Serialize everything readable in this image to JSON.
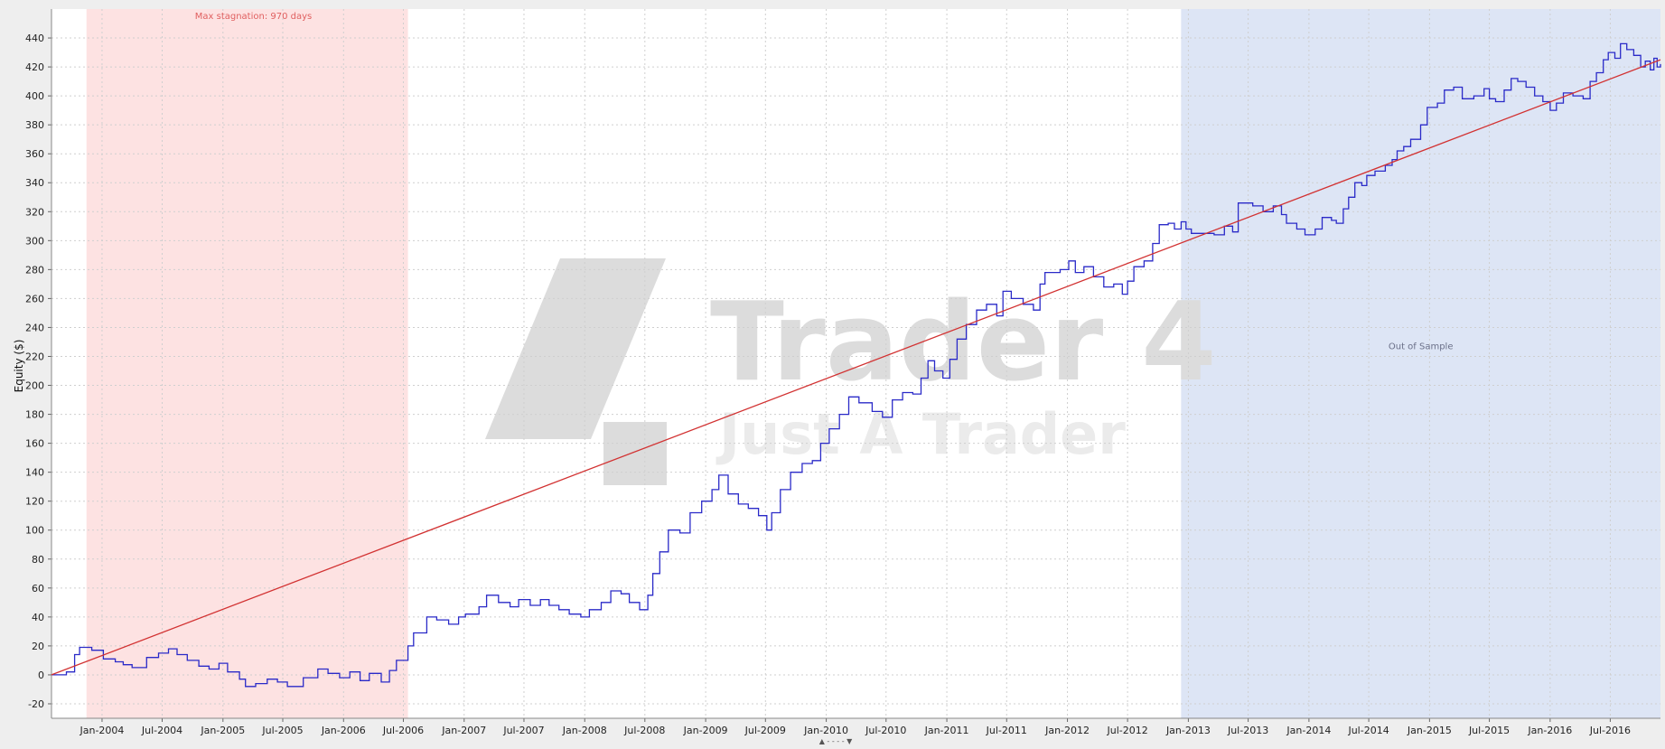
{
  "chart_data": {
    "type": "line",
    "title": "",
    "xlabel": "",
    "ylabel": "Equity ($)",
    "ylim": [
      -30,
      460
    ],
    "yticks": [
      -20,
      0,
      20,
      40,
      60,
      80,
      100,
      120,
      140,
      160,
      180,
      200,
      220,
      240,
      260,
      280,
      300,
      320,
      340,
      360,
      380,
      400,
      420,
      440
    ],
    "xlim": [
      "2003-08-01",
      "2016-11-30"
    ],
    "xticks": [
      "Jan-2004",
      "Jul-2004",
      "Jan-2005",
      "Jul-2005",
      "Jan-2006",
      "Jul-2006",
      "Jan-2007",
      "Jul-2007",
      "Jan-2008",
      "Jul-2008",
      "Jan-2009",
      "Jul-2009",
      "Jan-2010",
      "Jul-2010",
      "Jan-2011",
      "Jul-2011",
      "Jan-2012",
      "Jul-2012",
      "Jan-2013",
      "Jul-2013",
      "Jan-2014",
      "Jul-2014",
      "Jan-2015",
      "Jul-2015",
      "Jan-2016",
      "Jul-2016"
    ],
    "grid": true,
    "legend": "none",
    "regions": [
      {
        "label": "Max stagnation: 970 days",
        "start": "2003-11-15",
        "end": "2006-07-15",
        "color": "#fde2e2",
        "label_color": "#e06060"
      },
      {
        "label": "Out of Sample",
        "start": "2012-12-10",
        "end": "2016-11-30",
        "color": "#dde5f5",
        "label_color": "#6a6f88"
      }
    ],
    "series": [
      {
        "style": "step",
        "color": "#2a2ac8",
        "points": [
          [
            "2003-08-01",
            0
          ],
          [
            "2003-09-15",
            2
          ],
          [
            "2003-10-10",
            14
          ],
          [
            "2003-10-25",
            19
          ],
          [
            "2003-12-01",
            17
          ],
          [
            "2004-01-05",
            11
          ],
          [
            "2004-02-10",
            9
          ],
          [
            "2004-03-05",
            7
          ],
          [
            "2004-04-01",
            5
          ],
          [
            "2004-05-15",
            12
          ],
          [
            "2004-06-20",
            15
          ],
          [
            "2004-07-20",
            18
          ],
          [
            "2004-08-15",
            14
          ],
          [
            "2004-09-15",
            10
          ],
          [
            "2004-10-20",
            6
          ],
          [
            "2004-11-20",
            4
          ],
          [
            "2004-12-20",
            8
          ],
          [
            "2005-01-15",
            2
          ],
          [
            "2005-02-20",
            -3
          ],
          [
            "2005-03-10",
            -8
          ],
          [
            "2005-04-10",
            -6
          ],
          [
            "2005-05-15",
            -3
          ],
          [
            "2005-06-15",
            -5
          ],
          [
            "2005-07-15",
            -8
          ],
          [
            "2005-09-01",
            -2
          ],
          [
            "2005-10-15",
            4
          ],
          [
            "2005-11-15",
            1
          ],
          [
            "2005-12-20",
            -2
          ],
          [
            "2006-01-20",
            2
          ],
          [
            "2006-02-20",
            -4
          ],
          [
            "2006-03-20",
            1
          ],
          [
            "2006-04-25",
            -5
          ],
          [
            "2006-05-20",
            3
          ],
          [
            "2006-06-10",
            10
          ],
          [
            "2006-07-15",
            20
          ],
          [
            "2006-08-01",
            29
          ],
          [
            "2006-09-10",
            40
          ],
          [
            "2006-10-10",
            38
          ],
          [
            "2006-11-15",
            35
          ],
          [
            "2006-12-15",
            40
          ],
          [
            "2007-01-05",
            42
          ],
          [
            "2007-02-15",
            47
          ],
          [
            "2007-03-10",
            55
          ],
          [
            "2007-04-15",
            50
          ],
          [
            "2007-05-20",
            47
          ],
          [
            "2007-06-15",
            52
          ],
          [
            "2007-07-20",
            48
          ],
          [
            "2007-08-20",
            52
          ],
          [
            "2007-09-15",
            48
          ],
          [
            "2007-10-15",
            45
          ],
          [
            "2007-11-15",
            42
          ],
          [
            "2007-12-20",
            40
          ],
          [
            "2008-01-15",
            45
          ],
          [
            "2008-02-20",
            50
          ],
          [
            "2008-03-20",
            58
          ],
          [
            "2008-04-20",
            56
          ],
          [
            "2008-05-15",
            50
          ],
          [
            "2008-06-15",
            45
          ],
          [
            "2008-07-10",
            55
          ],
          [
            "2008-07-25",
            70
          ],
          [
            "2008-08-15",
            85
          ],
          [
            "2008-09-10",
            100
          ],
          [
            "2008-10-15",
            98
          ],
          [
            "2008-11-15",
            112
          ],
          [
            "2008-12-20",
            120
          ],
          [
            "2009-01-20",
            128
          ],
          [
            "2009-02-10",
            138
          ],
          [
            "2009-03-10",
            125
          ],
          [
            "2009-04-10",
            118
          ],
          [
            "2009-05-10",
            115
          ],
          [
            "2009-06-10",
            110
          ],
          [
            "2009-07-05",
            100
          ],
          [
            "2009-07-20",
            112
          ],
          [
            "2009-08-15",
            128
          ],
          [
            "2009-09-15",
            140
          ],
          [
            "2009-10-20",
            146
          ],
          [
            "2009-11-20",
            148
          ],
          [
            "2009-12-15",
            160
          ],
          [
            "2010-01-10",
            170
          ],
          [
            "2010-02-10",
            180
          ],
          [
            "2010-03-10",
            192
          ],
          [
            "2010-04-10",
            188
          ],
          [
            "2010-05-20",
            182
          ],
          [
            "2010-06-20",
            178
          ],
          [
            "2010-07-20",
            190
          ],
          [
            "2010-08-20",
            195
          ],
          [
            "2010-09-20",
            194
          ],
          [
            "2010-10-15",
            205
          ],
          [
            "2010-11-05",
            217
          ],
          [
            "2010-11-25",
            210
          ],
          [
            "2010-12-20",
            205
          ],
          [
            "2011-01-10",
            218
          ],
          [
            "2011-02-01",
            232
          ],
          [
            "2011-03-01",
            242
          ],
          [
            "2011-04-01",
            252
          ],
          [
            "2011-05-01",
            256
          ],
          [
            "2011-06-01",
            248
          ],
          [
            "2011-06-20",
            265
          ],
          [
            "2011-07-15",
            260
          ],
          [
            "2011-08-20",
            256
          ],
          [
            "2011-09-20",
            252
          ],
          [
            "2011-10-10",
            270
          ],
          [
            "2011-10-25",
            278
          ],
          [
            "2011-12-10",
            280
          ],
          [
            "2012-01-05",
            286
          ],
          [
            "2012-01-25",
            278
          ],
          [
            "2012-02-20",
            282
          ],
          [
            "2012-03-20",
            275
          ],
          [
            "2012-04-20",
            268
          ],
          [
            "2012-05-20",
            270
          ],
          [
            "2012-06-15",
            263
          ],
          [
            "2012-07-01",
            272
          ],
          [
            "2012-07-20",
            282
          ],
          [
            "2012-08-20",
            286
          ],
          [
            "2012-09-15",
            298
          ],
          [
            "2012-10-05",
            311
          ],
          [
            "2012-11-01",
            312
          ],
          [
            "2012-11-20",
            308
          ],
          [
            "2012-12-10",
            313
          ],
          [
            "2012-12-25",
            308
          ],
          [
            "2013-01-10",
            305
          ],
          [
            "2013-02-15",
            305
          ],
          [
            "2013-03-20",
            304
          ],
          [
            "2013-04-20",
            310
          ],
          [
            "2013-05-15",
            306
          ],
          [
            "2013-06-01",
            326
          ],
          [
            "2013-07-15",
            324
          ],
          [
            "2013-08-15",
            320
          ],
          [
            "2013-09-15",
            324
          ],
          [
            "2013-10-10",
            318
          ],
          [
            "2013-10-25",
            312
          ],
          [
            "2013-11-25",
            308
          ],
          [
            "2013-12-20",
            304
          ],
          [
            "2014-01-20",
            308
          ],
          [
            "2014-02-10",
            316
          ],
          [
            "2014-03-10",
            314
          ],
          [
            "2014-03-25",
            312
          ],
          [
            "2014-04-15",
            322
          ],
          [
            "2014-05-01",
            330
          ],
          [
            "2014-05-20",
            340
          ],
          [
            "2014-06-10",
            338
          ],
          [
            "2014-06-25",
            345
          ],
          [
            "2014-07-20",
            348
          ],
          [
            "2014-08-20",
            352
          ],
          [
            "2014-09-10",
            356
          ],
          [
            "2014-09-25",
            362
          ],
          [
            "2014-10-15",
            365
          ],
          [
            "2014-11-05",
            370
          ],
          [
            "2014-12-05",
            380
          ],
          [
            "2014-12-25",
            392
          ],
          [
            "2015-01-25",
            395
          ],
          [
            "2015-02-15",
            404
          ],
          [
            "2015-03-15",
            406
          ],
          [
            "2015-04-10",
            398
          ],
          [
            "2015-05-15",
            400
          ],
          [
            "2015-06-15",
            405
          ],
          [
            "2015-07-01",
            398
          ],
          [
            "2015-07-20",
            396
          ],
          [
            "2015-08-15",
            404
          ],
          [
            "2015-09-05",
            412
          ],
          [
            "2015-09-25",
            410
          ],
          [
            "2015-10-20",
            406
          ],
          [
            "2015-11-15",
            400
          ],
          [
            "2015-12-10",
            396
          ],
          [
            "2016-01-01",
            390
          ],
          [
            "2016-01-20",
            395
          ],
          [
            "2016-02-10",
            402
          ],
          [
            "2016-03-10",
            400
          ],
          [
            "2016-04-10",
            398
          ],
          [
            "2016-05-01",
            410
          ],
          [
            "2016-05-20",
            416
          ],
          [
            "2016-06-10",
            425
          ],
          [
            "2016-06-25",
            430
          ],
          [
            "2016-07-15",
            426
          ],
          [
            "2016-08-01",
            436
          ],
          [
            "2016-08-20",
            432
          ],
          [
            "2016-09-10",
            428
          ],
          [
            "2016-10-01",
            420
          ],
          [
            "2016-10-15",
            424
          ],
          [
            "2016-10-30",
            418
          ],
          [
            "2016-11-10",
            426
          ],
          [
            "2016-11-20",
            420
          ],
          [
            "2016-11-30",
            422
          ]
        ]
      },
      {
        "style": "line",
        "color": "#d23232",
        "points": [
          [
            "2003-08-01",
            0
          ],
          [
            "2016-11-30",
            425
          ]
        ]
      }
    ]
  },
  "watermark": {
    "line1": "Trader 4",
    "line2": "Just A Trader"
  },
  "footer": {
    "handle": "▲ - - - - ▼"
  }
}
